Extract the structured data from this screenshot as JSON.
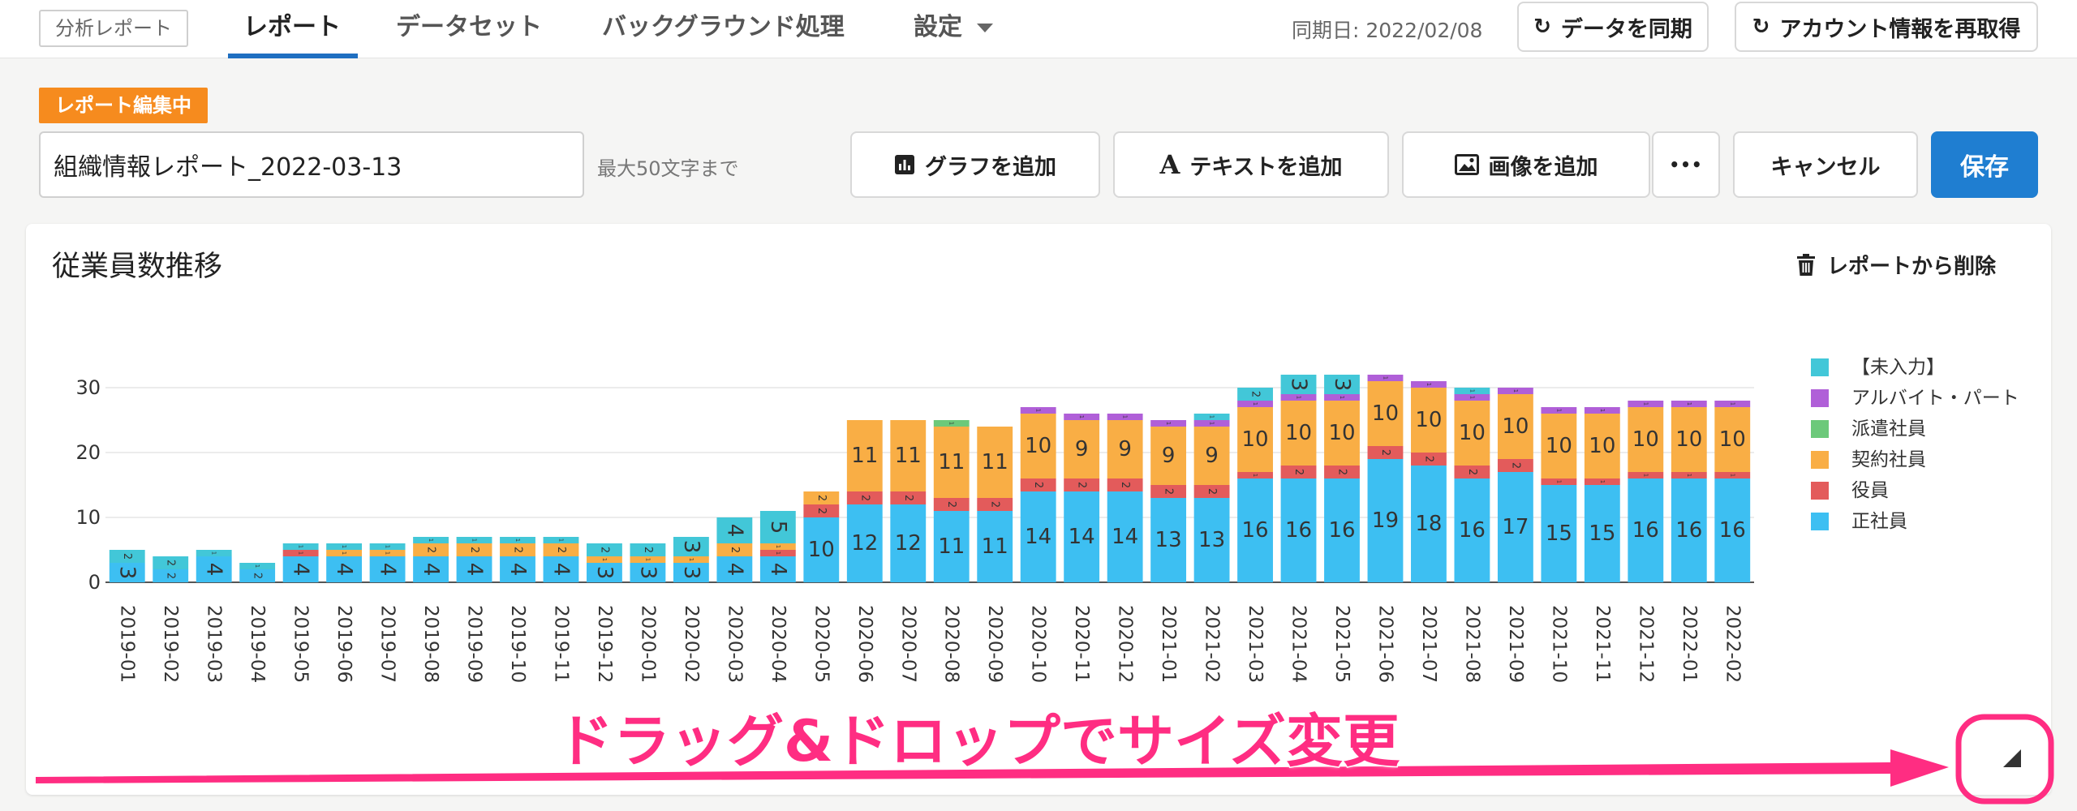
{
  "nav": {
    "brand": "分析レポート",
    "tabs": [
      {
        "label": "レポート"
      },
      {
        "label": "データセット"
      },
      {
        "label": "バックグラウンド処理"
      },
      {
        "label": "設定"
      }
    ],
    "sync_date": "同期日: 2022/02/08",
    "sync_button": "データを同期",
    "refetch_button": "アカウント情報を再取得"
  },
  "editor": {
    "badge": "レポート編集中",
    "report_name": "組織情報レポート_2022-03-13",
    "name_hint": "最大50文字まで",
    "add_graph": "グラフを追加",
    "add_text": "テキストを追加",
    "add_image": "画像を追加",
    "more": "•••",
    "cancel": "キャンセル",
    "save": "保存"
  },
  "card": {
    "title": "従業員数推移",
    "delete_label": "レポートから削除"
  },
  "chart_data": {
    "type": "bar",
    "stacked": true,
    "title": "従業員数推移",
    "ylim": [
      0,
      32
    ],
    "yticks": [
      0,
      10,
      20,
      30
    ],
    "grid": true,
    "legend_position": "right",
    "categories": [
      "2019-01",
      "2019-02",
      "2019-03",
      "2019-04",
      "2019-05",
      "2019-06",
      "2019-07",
      "2019-08",
      "2019-09",
      "2019-10",
      "2019-11",
      "2019-12",
      "2020-01",
      "2020-02",
      "2020-03",
      "2020-04",
      "2020-05",
      "2020-06",
      "2020-07",
      "2020-08",
      "2020-09",
      "2020-10",
      "2020-11",
      "2020-12",
      "2021-01",
      "2021-02",
      "2021-03",
      "2021-04",
      "2021-05",
      "2021-06",
      "2021-07",
      "2021-08",
      "2021-09",
      "2021-10",
      "2021-11",
      "2021-12",
      "2022-01",
      "2022-02"
    ],
    "series": [
      {
        "name": "正社員",
        "color": "#3dbff2",
        "values": [
          3,
          2,
          4,
          2,
          4,
          4,
          4,
          4,
          4,
          4,
          4,
          3,
          3,
          3,
          4,
          4,
          10,
          12,
          12,
          11,
          11,
          14,
          14,
          14,
          13,
          13,
          16,
          16,
          16,
          19,
          18,
          16,
          17,
          15,
          15,
          16,
          16,
          16
        ]
      },
      {
        "name": "役員",
        "color": "#e35b5b",
        "values": [
          0,
          0,
          0,
          0,
          1,
          0,
          0,
          0,
          0,
          0,
          0,
          0,
          0,
          0,
          0,
          1,
          2,
          2,
          2,
          2,
          2,
          2,
          2,
          2,
          2,
          2,
          1,
          2,
          2,
          2,
          2,
          2,
          2,
          1,
          1,
          1,
          1,
          1
        ]
      },
      {
        "name": "契約社員",
        "color": "#f9ae45",
        "values": [
          0,
          0,
          0,
          0,
          0,
          1,
          1,
          2,
          2,
          2,
          2,
          1,
          1,
          1,
          2,
          1,
          2,
          11,
          11,
          11,
          11,
          10,
          9,
          9,
          9,
          9,
          10,
          10,
          10,
          10,
          10,
          10,
          10,
          10,
          10,
          10,
          10,
          10
        ]
      },
      {
        "name": "派遣社員",
        "color": "#6cc97a",
        "values": [
          0,
          0,
          0,
          0,
          0,
          0,
          0,
          0,
          0,
          0,
          0,
          0,
          0,
          0,
          0,
          0,
          0,
          0,
          0,
          1,
          0,
          0,
          0,
          0,
          0,
          0,
          0,
          0,
          0,
          0,
          0,
          0,
          0,
          0,
          0,
          0,
          0,
          0
        ]
      },
      {
        "name": "アルバイト・パート",
        "color": "#b05fd8",
        "values": [
          0,
          0,
          0,
          0,
          0,
          0,
          0,
          0,
          0,
          0,
          0,
          0,
          0,
          0,
          0,
          0,
          0,
          0,
          0,
          0,
          0,
          1,
          1,
          1,
          1,
          1,
          1,
          1,
          1,
          1,
          1,
          1,
          1,
          1,
          1,
          1,
          1,
          1
        ]
      },
      {
        "name": "【未入力】",
        "color": "#42c7d8",
        "values": [
          2,
          2,
          1,
          1,
          1,
          1,
          1,
          1,
          1,
          1,
          1,
          2,
          2,
          3,
          4,
          5,
          0,
          0,
          0,
          0,
          0,
          0,
          0,
          0,
          0,
          1,
          2,
          3,
          3,
          0,
          0,
          1,
          0,
          0,
          0,
          0,
          0,
          0
        ]
      }
    ],
    "legend_order": [
      "【未入力】",
      "アルバイト・パート",
      "派遣社員",
      "契約社員",
      "役員",
      "正社員"
    ]
  },
  "overlay": {
    "annotation": "ドラッグ&ドロップでサイズ変更",
    "accent": "#ff2d82"
  }
}
